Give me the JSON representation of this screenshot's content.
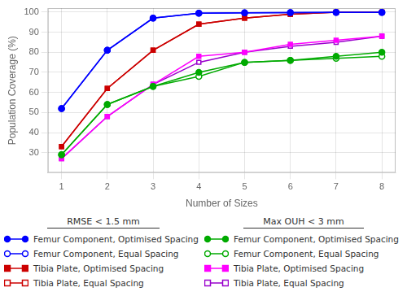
{
  "chart_data": {
    "type": "line",
    "xlabel": "Number of Sizes",
    "ylabel": "Population Coverage (%)",
    "x": [
      1,
      2,
      3,
      4,
      5,
      6,
      7,
      8
    ],
    "xlim": [
      0.7,
      8.3
    ],
    "xticks": [
      1,
      2,
      3,
      4,
      5,
      6,
      7,
      8
    ],
    "ylim": [
      20,
      102
    ],
    "yticks": [
      30,
      40,
      50,
      60,
      70,
      80,
      90,
      100
    ],
    "grid": true,
    "legend": "bottom",
    "series": [
      {
        "name": "Femur Component, Optimised Spacing",
        "group": "RMSE < 1.5 mm",
        "color": "#0000FF",
        "marker": "circle",
        "values": [
          52,
          81,
          97,
          99.5,
          99.7,
          99.8,
          99.9,
          99.9
        ]
      },
      {
        "name": "Femur Component, Equal Spacing",
        "group": "RMSE < 1.5 mm",
        "color": "#0000FF",
        "marker": "circle-open",
        "values": [
          52,
          81,
          97,
          99.5,
          99.7,
          99.8,
          99.9,
          99.9
        ]
      },
      {
        "name": "Tibia Plate, Optimised Spacing",
        "group": "RMSE < 1.5 mm",
        "color": "#CC0000",
        "marker": "square",
        "values": [
          33,
          62,
          81,
          94,
          97,
          99,
          100,
          100
        ]
      },
      {
        "name": "Tibia Plate, Equal Spacing",
        "group": "RMSE < 1.5 mm",
        "color": "#CC0000",
        "marker": "square-open",
        "values": [
          33,
          62,
          81,
          94,
          97,
          99,
          100,
          100
        ]
      },
      {
        "name": "Femur Component, Optimised Spacing",
        "group": "Max OUH < 3 mm",
        "color": "#00AA00",
        "marker": "circle",
        "values": [
          29,
          54,
          63,
          70,
          75,
          76,
          78,
          80
        ]
      },
      {
        "name": "Femur Component, Equal Spacing",
        "group": "Max OUH < 3 mm",
        "color": "#00AA00",
        "marker": "circle-open",
        "values": [
          29,
          54,
          63,
          68,
          75,
          76,
          77,
          78
        ]
      },
      {
        "name": "Tibia Plate, Optimised Spacing",
        "group": "Max OUH < 3 mm",
        "color": "#FF00FF",
        "marker": "square",
        "values": [
          27,
          48,
          64,
          78,
          80,
          84,
          86,
          88
        ]
      },
      {
        "name": "Tibia Plate, Equal Spacing",
        "group": "Max OUH < 3 mm",
        "color": "#9900CC",
        "marker": "square-open",
        "values": [
          27,
          48,
          64,
          75,
          80,
          83,
          85,
          88
        ]
      }
    ]
  }
}
